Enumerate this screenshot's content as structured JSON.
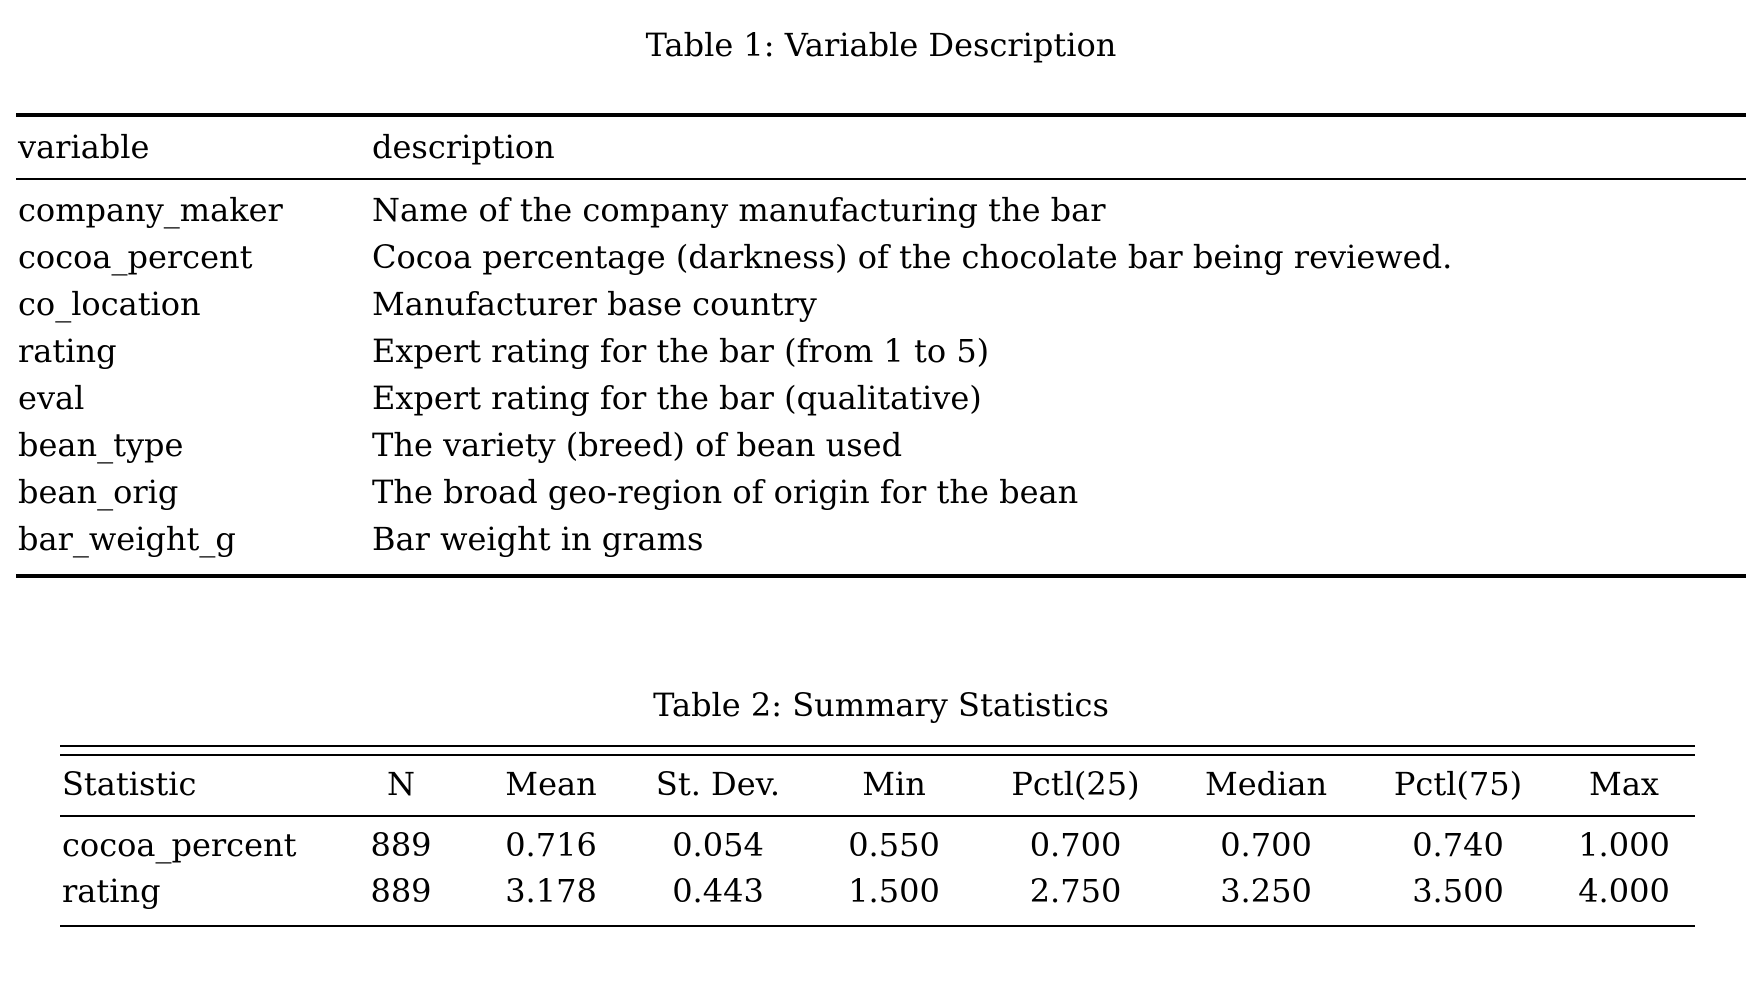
{
  "page": {
    "background_color": "#ffffff",
    "text_color": "#000000"
  },
  "table1": {
    "caption": "Table 1: Variable Description",
    "columns": [
      "variable",
      "description"
    ],
    "rows": [
      {
        "variable": "company_maker",
        "description": "Name of the company manufacturing the bar"
      },
      {
        "variable": "cocoa_percent",
        "description": "Cocoa percentage (darkness) of the chocolate bar being reviewed."
      },
      {
        "variable": "co_location",
        "description": "Manufacturer base country"
      },
      {
        "variable": "rating",
        "description": "Expert rating for the bar (from 1 to 5)"
      },
      {
        "variable": "eval",
        "description": "Expert rating for the bar (qualitative)"
      },
      {
        "variable": "bean_type",
        "description": "The variety (breed) of bean used"
      },
      {
        "variable": "bean_orig",
        "description": "The broad geo-region of origin for the bean"
      },
      {
        "variable": "bar_weight_g",
        "description": "Bar weight in grams"
      }
    ]
  },
  "table2": {
    "caption": "Table 2: Summary Statistics",
    "columns": [
      "Statistic",
      "N",
      "Mean",
      "St. Dev.",
      "Min",
      "Pctl(25)",
      "Median",
      "Pctl(75)",
      "Max"
    ],
    "rows": [
      {
        "statistic": "cocoa_percent",
        "n": "889",
        "mean": "0.716",
        "st_dev": "0.054",
        "min": "0.550",
        "pctl25": "0.700",
        "median": "0.700",
        "pctl75": "0.740",
        "max": "1.000"
      },
      {
        "statistic": "rating",
        "n": "889",
        "mean": "3.178",
        "st_dev": "0.443",
        "min": "1.500",
        "pctl25": "2.750",
        "median": "3.250",
        "pctl75": "3.500",
        "max": "4.000"
      }
    ]
  }
}
